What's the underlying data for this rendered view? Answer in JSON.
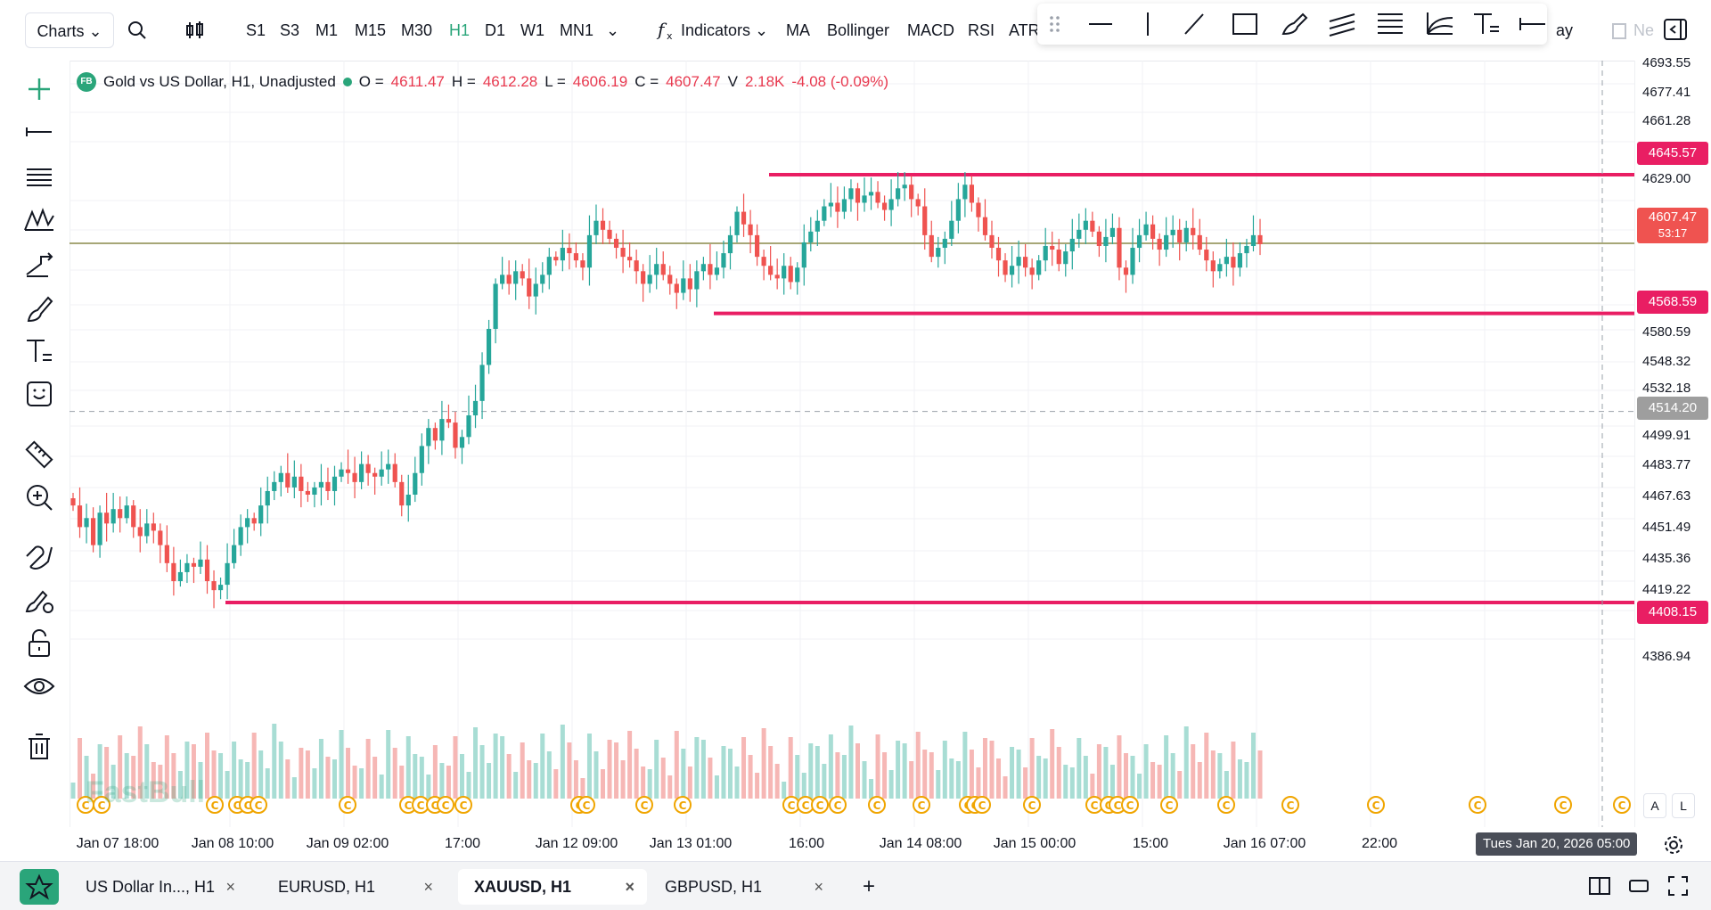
{
  "toolbar": {
    "charts_label": "Charts",
    "timeframes": [
      "S1",
      "S3",
      "M1",
      "M15",
      "M30",
      "H1",
      "D1",
      "W1",
      "MN1"
    ],
    "active_timeframe": "H1",
    "indicators_label": "Indicators",
    "indicator_shortcuts": [
      "MA",
      "Bollinger",
      "MACD",
      "RSI",
      "ATR"
    ],
    "clipped_right_text": "ay",
    "clipped_right_text2": "Ne"
  },
  "legend": {
    "badge": "FB",
    "title": "Gold vs US Dollar, H1, Unadjusted",
    "o_label": "O =",
    "o_value": "4611.47",
    "h_label": "H =",
    "h_value": "4612.28",
    "l_label": "L =",
    "l_value": "4606.19",
    "c_label": "C =",
    "c_value": "4607.47",
    "v_label": "V",
    "v_value": "2.18K",
    "change": "-4.08 (-0.09%)"
  },
  "price_axis": {
    "labels": [
      "4693.55",
      "4677.41",
      "4661.28",
      "4629.00",
      "4580.59",
      "4548.32",
      "4532.18",
      "4499.91",
      "4483.77",
      "4467.63",
      "4451.49",
      "4435.36",
      "4419.22",
      "4386.94"
    ],
    "badges": [
      {
        "value": "4645.57",
        "color": "#e91e63"
      },
      {
        "value": "4568.59",
        "color": "#e91e63"
      },
      {
        "value": "4514.20",
        "color": "#9e9e9e"
      },
      {
        "value": "4408.15",
        "color": "#e91e63"
      }
    ],
    "current_price": "4607.47",
    "countdown": "53:17",
    "current_color": "#ef5350"
  },
  "time_axis": {
    "labels": [
      "Jan 07 18:00",
      "Jan 08 10:00",
      "Jan 09 02:00",
      "17:00",
      "Jan 12 09:00",
      "Jan 13 01:00",
      "16:00",
      "Jan 14 08:00",
      "Jan 15 00:00",
      "15:00",
      "Jan 16 07:00",
      "22:00",
      "Jan"
    ],
    "crosshair_label": "Tues Jan 20, 2026 05:00"
  },
  "scale_buttons": {
    "auto": "A",
    "log": "L"
  },
  "watermark": "FastBull",
  "event_marker": "C",
  "tabs": [
    {
      "label": "US Dollar In..., H1",
      "active": false
    },
    {
      "label": "EURUSD, H1",
      "active": false
    },
    {
      "label": "XAUUSD, H1",
      "active": true
    },
    {
      "label": "GBPUSD, H1",
      "active": false
    }
  ],
  "add_tab_label": "+",
  "colors": {
    "up": "#26a69a",
    "down": "#ef5350",
    "accent": "#2aa57a",
    "hline": "#e91e63"
  },
  "chart_data": {
    "type": "candlestick",
    "title": "Gold vs US Dollar, H1, Unadjusted",
    "ylim": [
      4380,
      4700
    ],
    "horizontal_lines": [
      4645.57,
      4607.47,
      4568.59,
      4514.2,
      4408.15
    ],
    "closes": [
      4462,
      4450,
      4455,
      4440,
      4458,
      4452,
      4460,
      4455,
      4462,
      4450,
      4445,
      4452,
      4448,
      4440,
      4430,
      4420,
      4425,
      4430,
      4428,
      4432,
      4420,
      4415,
      4418,
      4430,
      4440,
      4450,
      4455,
      4452,
      4462,
      4470,
      4475,
      4480,
      4472,
      4478,
      4470,
      4468,
      4472,
      4475,
      4470,
      4478,
      4482,
      4480,
      4475,
      4485,
      4480,
      4478,
      4482,
      4485,
      4475,
      4462,
      4468,
      4480,
      4495,
      4505,
      4498,
      4510,
      4508,
      4494,
      4500,
      4512,
      4520,
      4540,
      4560,
      4585,
      4590,
      4585,
      4592,
      4588,
      4578,
      4585,
      4590,
      4600,
      4598,
      4605,
      4602,
      4598,
      4594,
      4612,
      4620,
      4615,
      4610,
      4605,
      4600,
      4598,
      4592,
      4585,
      4590,
      4596,
      4590,
      4585,
      4580,
      4588,
      4582,
      4592,
      4596,
      4590,
      4594,
      4602,
      4612,
      4625,
      4618,
      4612,
      4600,
      4595,
      4590,
      4588,
      4595,
      4586,
      4594,
      4608,
      4614,
      4620,
      4628,
      4630,
      4625,
      4632,
      4638,
      4630,
      4634,
      4636,
      4630,
      4626,
      4632,
      4638,
      4640,
      4632,
      4628,
      4612,
      4600,
      4605,
      4610,
      4620,
      4632,
      4640,
      4630,
      4622,
      4612,
      4605,
      4598,
      4590,
      4595,
      4600,
      4594,
      4590,
      4598,
      4606,
      4604,
      4596,
      4603,
      4610,
      4615,
      4620,
      4614,
      4606,
      4611,
      4616,
      4594,
      4590,
      4605,
      4612,
      4618,
      4610,
      4604,
      4612,
      4615,
      4608,
      4616,
      4612,
      4604,
      4598,
      4592,
      4596,
      4600,
      4594,
      4602,
      4606,
      4612,
      4607
    ]
  }
}
